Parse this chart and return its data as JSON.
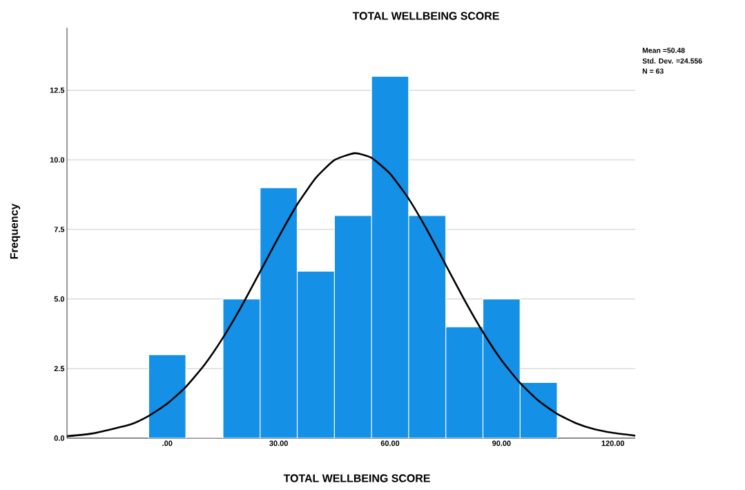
{
  "chart_data": {
    "type": "histogram",
    "title": "TOTAL WELLBEING SCORE",
    "xlabel": "TOTAL WELLBEING SCORE",
    "ylabel": "Frequency",
    "bins": [
      -5,
      5,
      15,
      25,
      35,
      45,
      55,
      65,
      75,
      85,
      95,
      105
    ],
    "values": [
      3,
      0,
      5,
      9,
      6,
      8,
      13,
      8,
      4,
      5,
      2
    ],
    "color": "#1490e6",
    "series": [
      {
        "type": "line",
        "color": "#000000",
        "x": [
          -27,
          -20,
          -10,
          -5,
          0,
          5,
          10,
          15,
          20,
          25,
          30,
          35,
          40,
          45,
          50.5,
          55,
          60,
          65,
          70,
          75,
          80,
          85,
          90,
          95,
          100,
          105,
          110,
          115,
          120,
          126
        ],
        "values": [
          0.07,
          0.17,
          0.49,
          0.8,
          1.24,
          1.84,
          2.63,
          3.61,
          4.74,
          5.98,
          7.23,
          8.4,
          9.35,
          9.99,
          10.24,
          10.07,
          9.5,
          8.6,
          7.47,
          6.22,
          4.97,
          3.81,
          2.8,
          1.98,
          1.34,
          0.87,
          0.54,
          0.32,
          0.19,
          0.09
        ]
      }
    ],
    "xlim": [
      -27,
      126
    ],
    "ylim": [
      0,
      14.75
    ],
    "xticks": [
      {
        "value": 0,
        "label": ".00"
      },
      {
        "value": 30,
        "label": "30.00"
      },
      {
        "value": 60,
        "label": "60.00"
      },
      {
        "value": 90,
        "label": "90.00"
      },
      {
        "value": 120,
        "label": "120.00"
      }
    ],
    "yticks": [
      {
        "value": 0,
        "label": "0.0"
      },
      2.5,
      {
        "value": 5,
        "label": "5.0"
      },
      7.5,
      {
        "value": 10,
        "label": "10.0"
      },
      12.5
    ],
    "grid": "y",
    "annotations": [
      "Mean =50.48",
      "Std. Dev. =24.556",
      "N = 63"
    ]
  }
}
